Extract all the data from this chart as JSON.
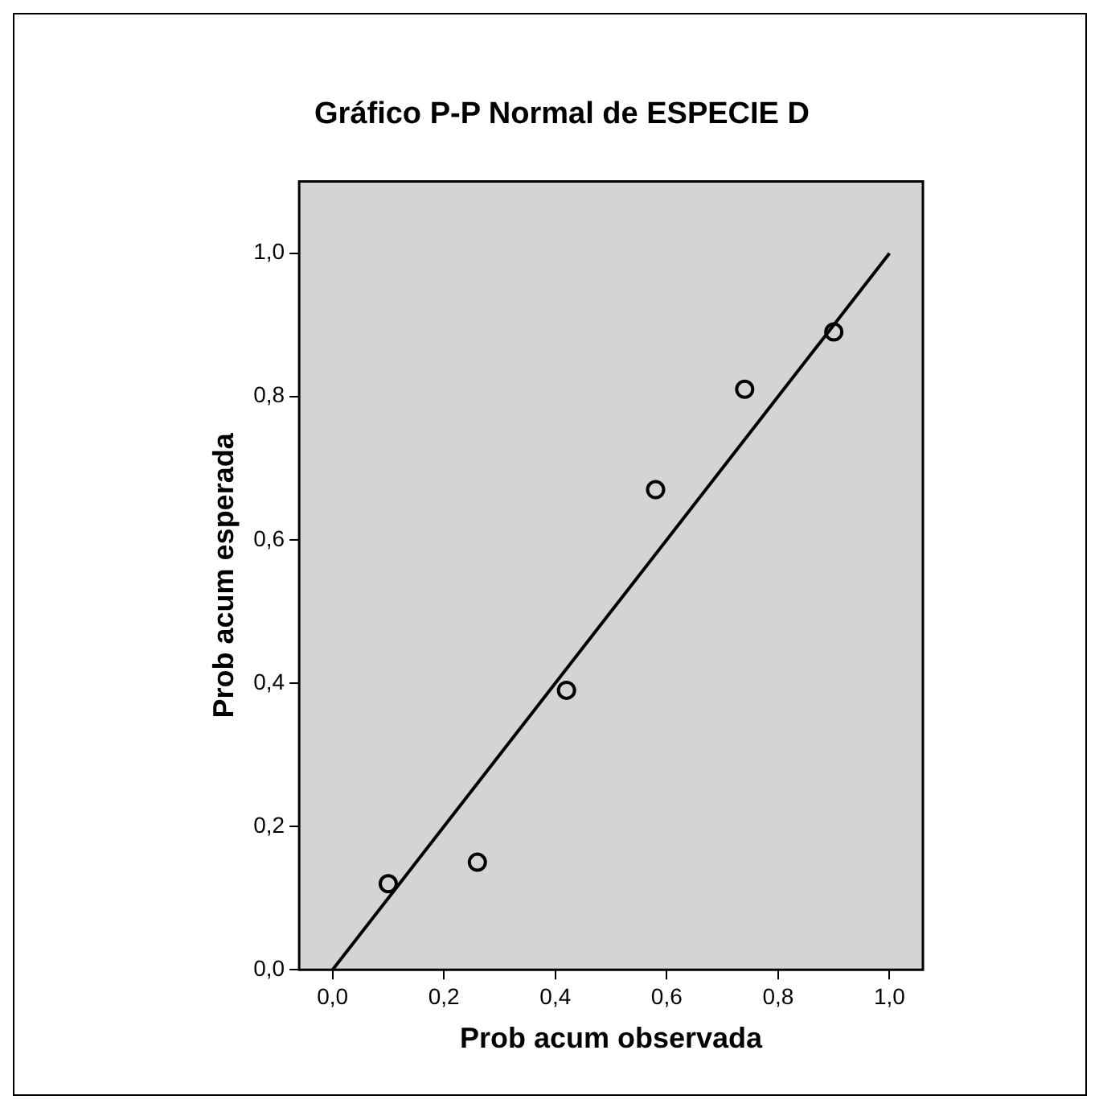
{
  "chart_data": {
    "type": "scatter",
    "title": "Gráfico P-P Normal de ESPECIE D",
    "xlabel": "Prob acum observada",
    "ylabel": "Prob acum esperada",
    "series": [
      {
        "color": "#000000",
        "marker": "circle",
        "x": [
          0.1,
          0.26,
          0.42,
          0.58,
          0.74,
          0.9
        ],
        "values": [
          0.12,
          0.15,
          0.39,
          0.67,
          0.81,
          0.89
        ]
      },
      {
        "type": "line",
        "color": "#000000",
        "marker": "none",
        "x": [
          0,
          1
        ],
        "values": [
          0,
          1
        ]
      }
    ],
    "xlim": [
      -0.06,
      1.06
    ],
    "ylim": [
      0,
      1.1
    ],
    "xticks": [
      {
        "value": 0,
        "label": "0,0"
      },
      {
        "value": 0.2,
        "label": "0,2"
      },
      {
        "value": 0.4,
        "label": "0,4"
      },
      {
        "value": 0.6,
        "label": "0,6"
      },
      {
        "value": 0.8,
        "label": "0,8"
      },
      {
        "value": 1,
        "label": "1,0"
      }
    ],
    "yticks": [
      {
        "value": 0,
        "label": "0,0"
      },
      {
        "value": 0.2,
        "label": "0,2"
      },
      {
        "value": 0.4,
        "label": "0,4"
      },
      {
        "value": 0.6,
        "label": "0,6"
      },
      {
        "value": 0.8,
        "label": "0,8"
      },
      {
        "value": 1,
        "label": "1,0"
      }
    ],
    "grid": false,
    "legend": false
  }
}
